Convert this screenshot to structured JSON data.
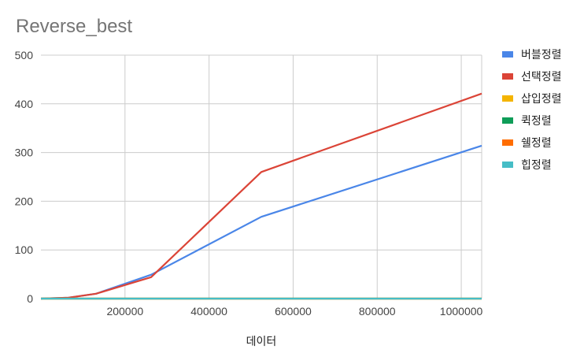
{
  "chart_data": {
    "type": "line",
    "title": "Reverse_best",
    "xlabel": "데이터",
    "ylabel": "",
    "xlim": [
      0,
      1048576
    ],
    "ylim": [
      0,
      500
    ],
    "x_ticks": [
      200000,
      400000,
      600000,
      800000,
      1000000
    ],
    "x_tick_labels": [
      "200000",
      "400000",
      "600000",
      "800000",
      "1000000"
    ],
    "y_ticks": [
      0,
      100,
      200,
      300,
      400,
      500
    ],
    "y_tick_labels": [
      "0",
      "100",
      "200",
      "300",
      "400",
      "500"
    ],
    "grid": true,
    "legend_position": "right",
    "x": [
      0,
      65536,
      131072,
      262144,
      524288,
      1048576
    ],
    "series": [
      {
        "name": "버블정렬",
        "color": "#4a86e8",
        "values": [
          0,
          2,
          10,
          49,
          168,
          314
        ]
      },
      {
        "name": "선택정렬",
        "color": "#db4437",
        "values": [
          0,
          2,
          10,
          44,
          260,
          421
        ]
      },
      {
        "name": "삽입정렬",
        "color": "#f4b400",
        "values": [
          0,
          0,
          0,
          0,
          0,
          0
        ]
      },
      {
        "name": "퀵정렬",
        "color": "#0f9d58",
        "values": [
          0,
          0,
          0,
          0,
          0,
          0
        ]
      },
      {
        "name": "쉘정렬",
        "color": "#ff6d00",
        "values": [
          0,
          0,
          0,
          0,
          0,
          0
        ]
      },
      {
        "name": "힙정렬",
        "color": "#46bdc6",
        "values": [
          0,
          0,
          0,
          0,
          0,
          0
        ]
      }
    ]
  }
}
